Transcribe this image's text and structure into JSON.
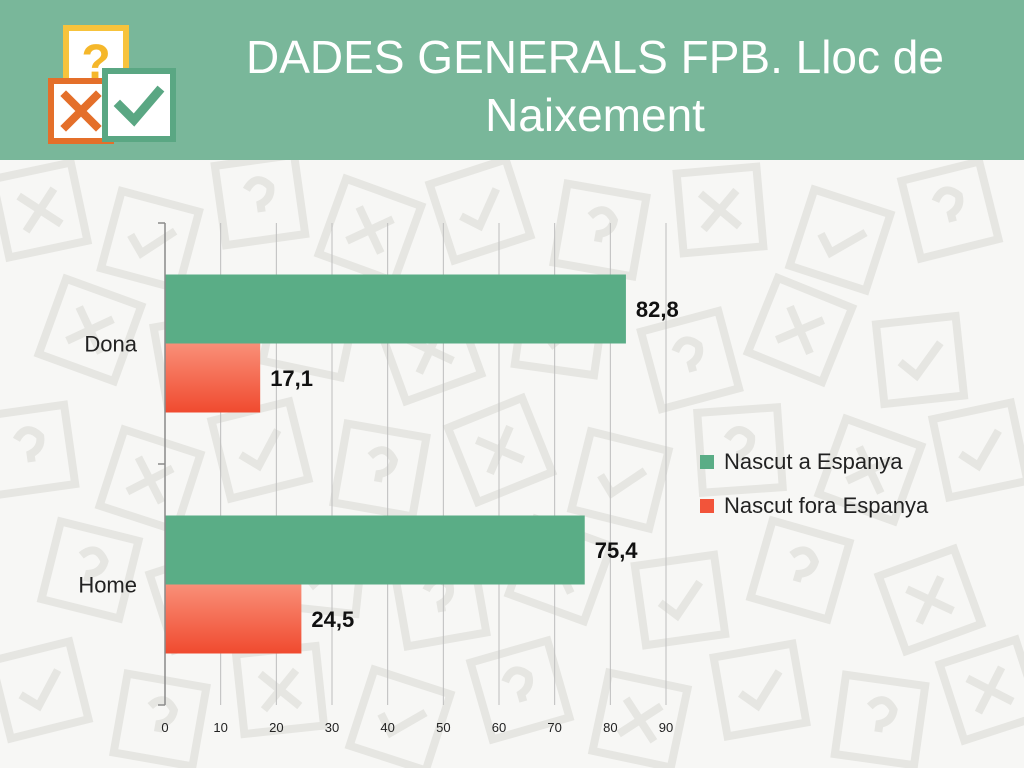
{
  "header": {
    "title_line1": "DADES GENERALS FPB. Lloc de",
    "title_line2": "Naixement"
  },
  "colors": {
    "header": "#79b79a",
    "series_espanya": "#5aad86",
    "series_fora": "#f2543a"
  },
  "chart_data": {
    "type": "bar",
    "orientation": "horizontal",
    "categories": [
      "Dona",
      "Home"
    ],
    "series": [
      {
        "name": "Nascut a Espanya",
        "values": [
          82.8,
          75.4
        ],
        "labels": [
          "82,8",
          "75,4"
        ]
      },
      {
        "name": "Nascut fora Espanya",
        "values": [
          17.1,
          24.5
        ],
        "labels": [
          "17,1",
          "24,5"
        ]
      }
    ],
    "xlim": [
      0,
      90
    ],
    "xticks": [
      "0",
      "10",
      "20",
      "30",
      "40",
      "50",
      "60",
      "70",
      "80",
      "90"
    ],
    "grid": true,
    "legend": "right"
  }
}
